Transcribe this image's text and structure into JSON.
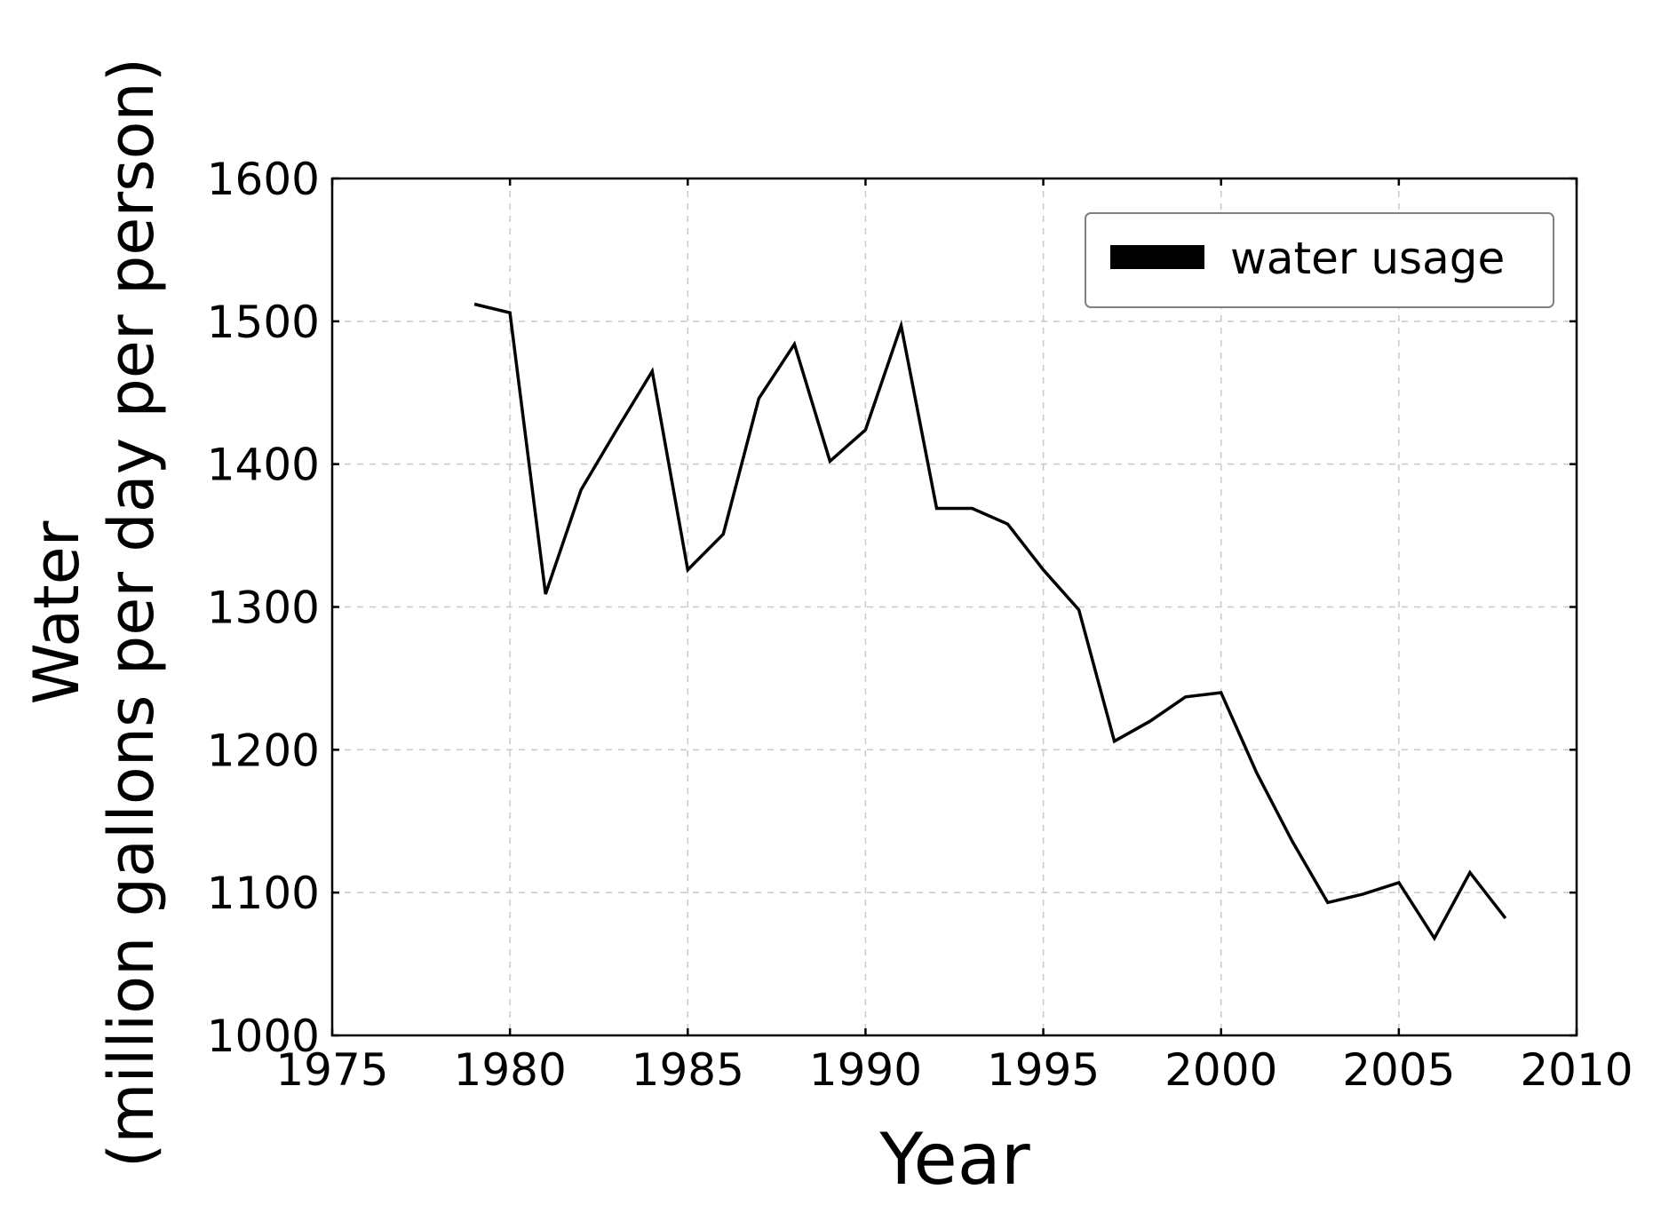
{
  "chart_data": {
    "type": "line",
    "title": "",
    "xlabel": "Year",
    "ylabel_lines": [
      "Water",
      "(million gallons per day per person)"
    ],
    "xlim": [
      1975,
      2010
    ],
    "ylim": [
      1000,
      1600
    ],
    "xticks": [
      1975,
      1980,
      1985,
      1990,
      1995,
      2000,
      2005,
      2010
    ],
    "yticks": [
      1000,
      1100,
      1200,
      1300,
      1400,
      1500,
      1600
    ],
    "grid": true,
    "legend_position": "top-right",
    "series": [
      {
        "name": "water usage",
        "color": "#000000",
        "x": [
          1979,
          1980,
          1981,
          1982,
          1983,
          1984,
          1985,
          1986,
          1987,
          1988,
          1989,
          1990,
          1991,
          1992,
          1993,
          1994,
          1995,
          1996,
          1997,
          1998,
          1999,
          2000,
          2001,
          2002,
          2003,
          2004,
          2005,
          2006,
          2007,
          2008
        ],
        "y": [
          1512,
          1506,
          1309,
          1382,
          1424,
          1465,
          1326,
          1351,
          1446,
          1484,
          1402,
          1424,
          1497,
          1369,
          1369,
          1358,
          1326,
          1298,
          1206,
          1220,
          1237,
          1240,
          1184,
          1136,
          1093,
          1099,
          1107,
          1068,
          1114,
          1082
        ]
      }
    ]
  }
}
